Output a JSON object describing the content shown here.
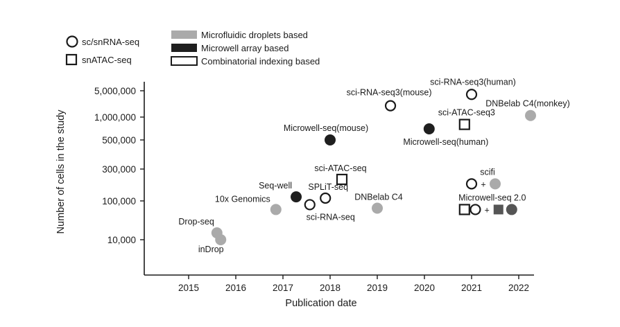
{
  "chart_data": {
    "type": "scatter",
    "xlabel": "Publication date",
    "ylabel": "Number of cells in the study",
    "x_ticks": [
      "2015",
      "2016",
      "2017",
      "2018",
      "2019",
      "2020",
      "2021",
      "2022"
    ],
    "y_ticks": [
      "10,000",
      "100,000",
      "300,000",
      "500,000",
      "1,000,000",
      "5,000,000"
    ],
    "legend": {
      "shapes": [
        {
          "marker": "circle",
          "label": "sc/snRNA-seq"
        },
        {
          "marker": "square",
          "label": "snATAC-seq"
        }
      ],
      "fills": [
        {
          "fill": "gray",
          "label": "Microfluidic droplets based"
        },
        {
          "fill": "black",
          "label": "Microwell array based"
        },
        {
          "fill": "none",
          "label": "Combinatorial indexing based"
        }
      ]
    },
    "colors": {
      "gray": "#aaaaaa",
      "black": "#1f1f1f",
      "dark_gray": "#555555",
      "axis": "#1a1a1a"
    },
    "points": [
      {
        "label": "Drop-seq",
        "date": 2015.6,
        "cells": 15000,
        "marker": "circle",
        "fill": "gray"
      },
      {
        "label": "inDrop",
        "date": 2015.68,
        "cells": 10000,
        "marker": "circle",
        "fill": "gray"
      },
      {
        "label": "10x Genomics",
        "date": 2016.85,
        "cells": 60000,
        "marker": "circle",
        "fill": "gray"
      },
      {
        "label": "Seq-well",
        "date": 2017.28,
        "cells": 115000,
        "marker": "circle",
        "fill": "black"
      },
      {
        "label": "sci-RNA-seq",
        "date": 2017.57,
        "cells": 80000,
        "marker": "circle",
        "fill": "none"
      },
      {
        "label": "SPLiT-seq",
        "date": 2017.9,
        "cells": 110000,
        "marker": "circle",
        "fill": "none"
      },
      {
        "label": "sci-ATAC-seq",
        "date": 2018.25,
        "cells": 210000,
        "marker": "square",
        "fill": "none"
      },
      {
        "label": "Microwell-seq(mouse)",
        "date": 2018.0,
        "cells": 500000,
        "marker": "circle",
        "fill": "black"
      },
      {
        "label": "DNBelab C4",
        "date": 2019.0,
        "cells": 65000,
        "marker": "circle",
        "fill": "gray"
      },
      {
        "label": "sci-RNA-seq3(mouse)",
        "date": 2019.28,
        "cells": 2000000,
        "marker": "circle",
        "fill": "none"
      },
      {
        "label": "Microwell-seq(human)",
        "date": 2020.1,
        "cells": 700000,
        "marker": "circle",
        "fill": "black"
      },
      {
        "label": "sci-ATAC-seq3",
        "date": 2020.85,
        "cells": 800000,
        "marker": "square",
        "fill": "none"
      },
      {
        "label": "sci-RNA-seq3(human)",
        "date": 2021.0,
        "cells": 4000000,
        "marker": "circle",
        "fill": "none"
      },
      {
        "label": "DNBelab C4(monkey)",
        "date": 2022.25,
        "cells": 1100000,
        "marker": "circle",
        "fill": "gray"
      }
    ],
    "groups": [
      {
        "label": "scifi",
        "items": [
          {
            "date": 2021.0,
            "cells": 180000,
            "marker": "circle",
            "fill": "none"
          },
          {
            "text": "+"
          },
          {
            "date": 2021.5,
            "cells": 180000,
            "marker": "circle",
            "fill": "gray"
          }
        ]
      },
      {
        "label": "Microwell-seq 2.0",
        "items": [
          {
            "date": 2020.85,
            "cells": 60000,
            "marker": "square",
            "fill": "none"
          },
          {
            "date": 2021.08,
            "cells": 60000,
            "marker": "circle",
            "fill": "none"
          },
          {
            "text": "+"
          },
          {
            "date": 2021.57,
            "cells": 60000,
            "marker": "square",
            "fill": "dark_gray"
          },
          {
            "date": 2021.85,
            "cells": 60000,
            "marker": "circle",
            "fill": "dark_gray"
          }
        ]
      }
    ]
  }
}
